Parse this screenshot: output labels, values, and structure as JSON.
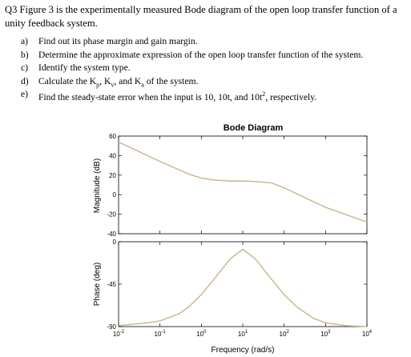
{
  "question": {
    "line1": "Q3 Figure 3 is the experimentally measured Bode diagram of the open loop transfer function of a",
    "line2": "unity feedback system.",
    "items": [
      {
        "letter": "a)",
        "text": "Find out its phase margin and gain margin."
      },
      {
        "letter": "b)",
        "text": "Determine the approximate expression of the open loop transfer function of the system."
      },
      {
        "letter": "c)",
        "text": "Identify the system type."
      },
      {
        "letter": "d)",
        "text_parts": [
          "Calculate the K",
          "p",
          ", K",
          "v",
          ", and K",
          "a",
          " of the system."
        ]
      },
      {
        "letter": "e)",
        "text_parts": [
          "Find the steady-state error when the input is 10, 10t, and 10t",
          "2",
          ", respectively."
        ]
      }
    ]
  },
  "chart_data": {
    "type": "line",
    "title": "Bode Diagram",
    "xlabel": "Frequency  (rad/s)",
    "x_scale": "log",
    "x_ticks": [
      {
        "value": 0.01,
        "base": "10",
        "exp": "-2"
      },
      {
        "value": 0.1,
        "base": "10",
        "exp": "-1"
      },
      {
        "value": 1,
        "base": "10",
        "exp": "0"
      },
      {
        "value": 10,
        "base": "10",
        "exp": "1"
      },
      {
        "value": 100,
        "base": "10",
        "exp": "2"
      },
      {
        "value": 1000,
        "base": "10",
        "exp": "3"
      },
      {
        "value": 10000,
        "base": "10",
        "exp": "4"
      }
    ],
    "xlim": [
      0.01,
      10000
    ],
    "line_color": "#c8b48a",
    "grid": false,
    "magnitude": {
      "ylabel": "Magnitude (dB)",
      "ylim": [
        -40,
        60
      ],
      "yticks": [
        60,
        40,
        20,
        0,
        -20,
        -40
      ],
      "x": [
        0.01,
        0.05,
        0.1,
        0.5,
        1,
        2,
        5,
        10,
        20,
        50,
        100,
        200,
        500,
        1000,
        10000
      ],
      "y": [
        54,
        40,
        34,
        21,
        17,
        15,
        14,
        14,
        13.5,
        12,
        7,
        1,
        -7,
        -13,
        -28
      ]
    },
    "phase": {
      "ylabel": "Phase (deg)",
      "ylim": [
        -90,
        0
      ],
      "yticks": [
        0,
        -45,
        -90
      ],
      "x": [
        0.01,
        0.05,
        0.1,
        0.3,
        0.5,
        1,
        2,
        5,
        10,
        20,
        50,
        100,
        200,
        500,
        1000,
        3000,
        10000
      ],
      "y": [
        -89,
        -86,
        -84,
        -76,
        -69,
        -56,
        -40,
        -18,
        -8,
        -18,
        -40,
        -56,
        -69,
        -81,
        -86,
        -89,
        -90
      ]
    }
  }
}
